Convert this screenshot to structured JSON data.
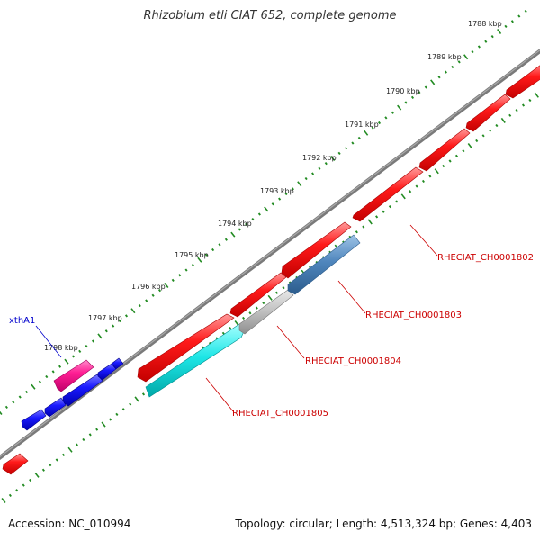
{
  "title": "Rhizobium etli CIAT 652, complete genome",
  "footer": {
    "accession": "Accession: NC_010994",
    "summary": "Topology: circular; Length: 4,513,324 bp; Genes: 4,403"
  },
  "ruler": {
    "tick_labels": [
      "1788 kbp",
      "1789 kbp",
      "1790 kbp",
      "1791 kbp",
      "1792 kbp",
      "1793 kbp",
      "1794 kbp",
      "1795 kbp",
      "1796 kbp",
      "1797 kbp",
      "1798 kbp"
    ]
  },
  "gene_labels": {
    "xthA1": "xthA1",
    "ch1802": "RHECIAT_CH0001802",
    "ch1803": "RHECIAT_CH0001803",
    "ch1804": "RHECIAT_CH0001804",
    "ch1805": "RHECIAT_CH0001805"
  },
  "colors": {
    "forward_cds": "#ff0000",
    "reverse_cds": "#0000ff",
    "xthA1": "#ff1493",
    "ch1803": "#4682b4",
    "ch1804": "#c0c0c0",
    "ch1805": "#00e5e5",
    "backbone": "#808080",
    "ruler_dots": "#228b22",
    "label_red": "#cc0000",
    "label_blue": "#0000cc"
  }
}
